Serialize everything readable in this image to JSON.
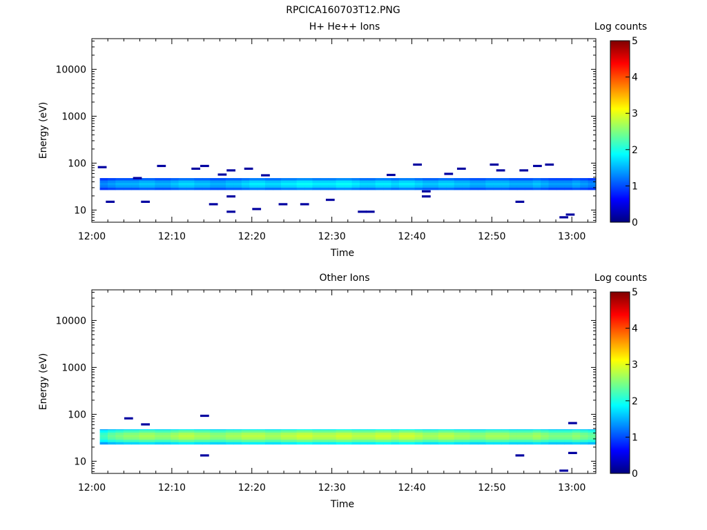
{
  "page_title": "RPCICA160703T12.PNG",
  "colorbar_stops": [
    "#00007f",
    "#0000ff",
    "#007fff",
    "#00ffff",
    "#7fff7f",
    "#ffff00",
    "#ff7f00",
    "#ff0000",
    "#7f0000"
  ],
  "chart_data": [
    {
      "type": "heatmap",
      "title": "H+ He++ Ions",
      "xlabel": "Time",
      "ylabel": "Energy (eV)",
      "colorbar_label": "Log counts",
      "x_ticks": [
        "12:00",
        "12:10",
        "12:20",
        "12:30",
        "12:40",
        "12:50",
        "13:00"
      ],
      "y_ticks": [
        "10",
        "100",
        "1000",
        "10000"
      ],
      "colorbar_ticks": [
        "0",
        "1",
        "2",
        "3",
        "4",
        "5"
      ],
      "x_range_min": [
        0,
        63
      ],
      "y_range_ev": [
        5.5,
        45000
      ],
      "y_scale": "log",
      "z_range": [
        0,
        5
      ],
      "band_ev": [
        27,
        48
      ],
      "band_counts": [
        1.3,
        1.4,
        1.5,
        1.5,
        1.5,
        1.6,
        1.6,
        1.5,
        1.5,
        1.6,
        1.7,
        1.7,
        1.6,
        1.6,
        1.5,
        1.5,
        1.6,
        1.6,
        1.7,
        1.8,
        1.8,
        1.7,
        1.7,
        1.8,
        1.8,
        1.9,
        1.9,
        1.8,
        1.8,
        1.8,
        1.9,
        1.9,
        1.8,
        1.7,
        1.7,
        1.8,
        1.8,
        1.7,
        1.8,
        1.8,
        1.7,
        1.6,
        1.6,
        1.7,
        1.7,
        1.6,
        1.6,
        1.5,
        1.5,
        1.6,
        1.6,
        1.6,
        1.5,
        1.5,
        1.5,
        1.6,
        1.5,
        1.4,
        1.4,
        1.4,
        1.5,
        1.4,
        1.3
      ],
      "sparse_points": [
        {
          "t": 1.3,
          "e": 82
        },
        {
          "t": 2.3,
          "e": 15
        },
        {
          "t": 5.7,
          "e": 48
        },
        {
          "t": 6.7,
          "e": 15
        },
        {
          "t": 8.7,
          "e": 87
        },
        {
          "t": 13.0,
          "e": 76
        },
        {
          "t": 14.1,
          "e": 87
        },
        {
          "t": 15.2,
          "e": 13.3
        },
        {
          "t": 16.3,
          "e": 57
        },
        {
          "t": 17.4,
          "e": 70
        },
        {
          "t": 17.4,
          "e": 19.5
        },
        {
          "t": 17.4,
          "e": 9.2
        },
        {
          "t": 19.6,
          "e": 76
        },
        {
          "t": 20.6,
          "e": 10.5
        },
        {
          "t": 21.7,
          "e": 55
        },
        {
          "t": 23.9,
          "e": 13.3
        },
        {
          "t": 26.6,
          "e": 13.3
        },
        {
          "t": 29.8,
          "e": 16.5
        },
        {
          "t": 33.8,
          "e": 9.2
        },
        {
          "t": 34.8,
          "e": 9.2
        },
        {
          "t": 37.4,
          "e": 56
        },
        {
          "t": 40.7,
          "e": 93
        },
        {
          "t": 41.8,
          "e": 25
        },
        {
          "t": 41.8,
          "e": 19.5
        },
        {
          "t": 44.6,
          "e": 59
        },
        {
          "t": 46.2,
          "e": 76
        },
        {
          "t": 50.3,
          "e": 93
        },
        {
          "t": 51.1,
          "e": 70
        },
        {
          "t": 53.5,
          "e": 15
        },
        {
          "t": 54.0,
          "e": 70
        },
        {
          "t": 55.7,
          "e": 87
        },
        {
          "t": 57.2,
          "e": 93
        },
        {
          "t": 59.0,
          "e": 7.0
        },
        {
          "t": 59.8,
          "e": 8.0
        }
      ]
    },
    {
      "type": "heatmap",
      "title": "Other Ions",
      "xlabel": "Time",
      "ylabel": "Energy (eV)",
      "colorbar_label": "Log counts",
      "x_ticks": [
        "12:00",
        "12:10",
        "12:20",
        "12:30",
        "12:40",
        "12:50",
        "13:00"
      ],
      "y_ticks": [
        "10",
        "100",
        "1000",
        "10000"
      ],
      "colorbar_ticks": [
        "0",
        "1",
        "2",
        "3",
        "4",
        "5"
      ],
      "x_range_min": [
        0,
        63
      ],
      "y_range_ev": [
        5.5,
        45000
      ],
      "y_scale": "log",
      "z_range": [
        0,
        5
      ],
      "band_ev": [
        23,
        48
      ],
      "band_counts": [
        2.2,
        2.4,
        2.5,
        2.6,
        2.6,
        2.7,
        2.7,
        2.6,
        2.6,
        2.7,
        2.8,
        2.8,
        2.7,
        2.7,
        2.6,
        2.6,
        2.7,
        2.7,
        2.8,
        2.8,
        2.8,
        2.7,
        2.7,
        2.8,
        2.8,
        2.9,
        2.9,
        2.8,
        2.8,
        2.8,
        2.9,
        2.9,
        2.8,
        2.8,
        2.8,
        2.9,
        2.9,
        2.8,
        2.9,
        2.9,
        2.8,
        2.7,
        2.7,
        2.8,
        2.8,
        2.7,
        2.7,
        2.6,
        2.6,
        2.7,
        2.7,
        2.7,
        2.6,
        2.6,
        2.6,
        2.7,
        2.6,
        2.5,
        2.5,
        2.5,
        2.6,
        2.5,
        2.4
      ],
      "sparse_points": [
        {
          "t": 4.6,
          "e": 82
        },
        {
          "t": 6.7,
          "e": 61
        },
        {
          "t": 14.1,
          "e": 93
        },
        {
          "t": 14.1,
          "e": 13.3
        },
        {
          "t": 53.5,
          "e": 13.3
        },
        {
          "t": 59.0,
          "e": 6.3
        },
        {
          "t": 60.1,
          "e": 65
        },
        {
          "t": 60.1,
          "e": 15
        }
      ]
    }
  ]
}
